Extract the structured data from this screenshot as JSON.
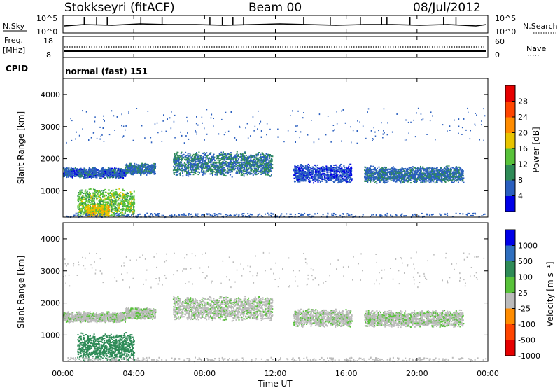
{
  "header": {
    "station": "Stokkseyri (fitACF)",
    "beam": "Beam 00",
    "date": "08/Jul/2012"
  },
  "top_panels": {
    "nsky_label": "N.Sky",
    "nsky_top_tick": "10^5",
    "nsky_bottom_tick": "10^0",
    "nsearch_label": "N.Search",
    "nsearch_top_tick": "10^5",
    "nsearch_bottom_tick": "10^0",
    "freq_label": "Freq.",
    "freq_unit": "[MHz]",
    "freq_top_tick": "18",
    "freq_bottom_tick": "8",
    "nave_label": "Nave",
    "nave_top_tick": "60",
    "nave_bottom_tick": "0",
    "cpid_label": "CPID",
    "cpid_value": "normal (fast) 151"
  },
  "chart_data": [
    {
      "type": "heatmap",
      "panel": "power",
      "ylabel": "Slant Range [km]",
      "xlabel": "Time UT",
      "xlim": [
        0,
        24
      ],
      "ylim": [
        180,
        4500
      ],
      "y_ticks": [
        "1000",
        "2000",
        "3000",
        "4000"
      ],
      "x_ticks": [
        "00:00",
        "04:00",
        "08:00",
        "12:00",
        "16:00",
        "20:00",
        "00:00"
      ],
      "colorbar_label": "Power [dB]",
      "colorbar_ticks": [
        "4",
        "8",
        "12",
        "16",
        "20",
        "24",
        "28"
      ],
      "colorbar_colors": [
        "#0000e8",
        "#2a5fbf",
        "#2e8b57",
        "#58c23a",
        "#e8c400",
        "#ff8c00",
        "#ff4500",
        "#e60000"
      ],
      "regions": [
        {
          "t0": 0.0,
          "t1": 3.5,
          "r0": 1400,
          "r1": 1750,
          "level": 6
        },
        {
          "t0": 3.5,
          "t1": 5.2,
          "r0": 1500,
          "r1": 1900,
          "level": 7
        },
        {
          "t0": 6.2,
          "t1": 11.8,
          "r0": 1450,
          "r1": 2250,
          "level": 8
        },
        {
          "t0": 13.0,
          "t1": 16.3,
          "r0": 1250,
          "r1": 1850,
          "level": 5
        },
        {
          "t0": 17.0,
          "t1": 22.6,
          "r0": 1250,
          "r1": 1800,
          "level": 7
        },
        {
          "t0": 0.8,
          "t1": 4.0,
          "r0": 200,
          "r1": 1100,
          "level": 14
        },
        {
          "t0": 1.2,
          "t1": 2.6,
          "r0": 200,
          "r1": 600,
          "level": 18
        }
      ]
    },
    {
      "type": "heatmap",
      "panel": "velocity",
      "ylabel": "Slant Range [km]",
      "xlabel": "Time UT",
      "xlim": [
        0,
        24
      ],
      "ylim": [
        180,
        4500
      ],
      "y_ticks": [
        "1000",
        "2000",
        "3000",
        "4000"
      ],
      "x_ticks": [
        "00:00",
        "04:00",
        "08:00",
        "12:00",
        "16:00",
        "20:00",
        "00:00"
      ],
      "colorbar_label": "Velocity [m s⁻¹]",
      "colorbar_ticks": [
        "1000",
        "500",
        "100",
        "25",
        "-25",
        "-100",
        "-500",
        "-1000"
      ],
      "colorbar_colors": [
        "#0000e8",
        "#2e6fbf",
        "#2e8b57",
        "#58c23a",
        "#bbbbbb",
        "#ff8c00",
        "#ff4500",
        "#e60000"
      ],
      "regions": [
        {
          "t0": 0.0,
          "t1": 3.5,
          "r0": 1400,
          "r1": 1750,
          "level": 0
        },
        {
          "t0": 3.5,
          "t1": 5.2,
          "r0": 1500,
          "r1": 1900,
          "level": 0
        },
        {
          "t0": 6.2,
          "t1": 11.8,
          "r0": 1450,
          "r1": 2250,
          "level": 0
        },
        {
          "t0": 13.0,
          "t1": 16.3,
          "r0": 1250,
          "r1": 1850,
          "level": 0
        },
        {
          "t0": 17.0,
          "t1": 22.6,
          "r0": 1250,
          "r1": 1800,
          "level": 0
        },
        {
          "t0": 0.8,
          "t1": 4.0,
          "r0": 200,
          "r1": 1100,
          "level": 50
        }
      ]
    }
  ]
}
